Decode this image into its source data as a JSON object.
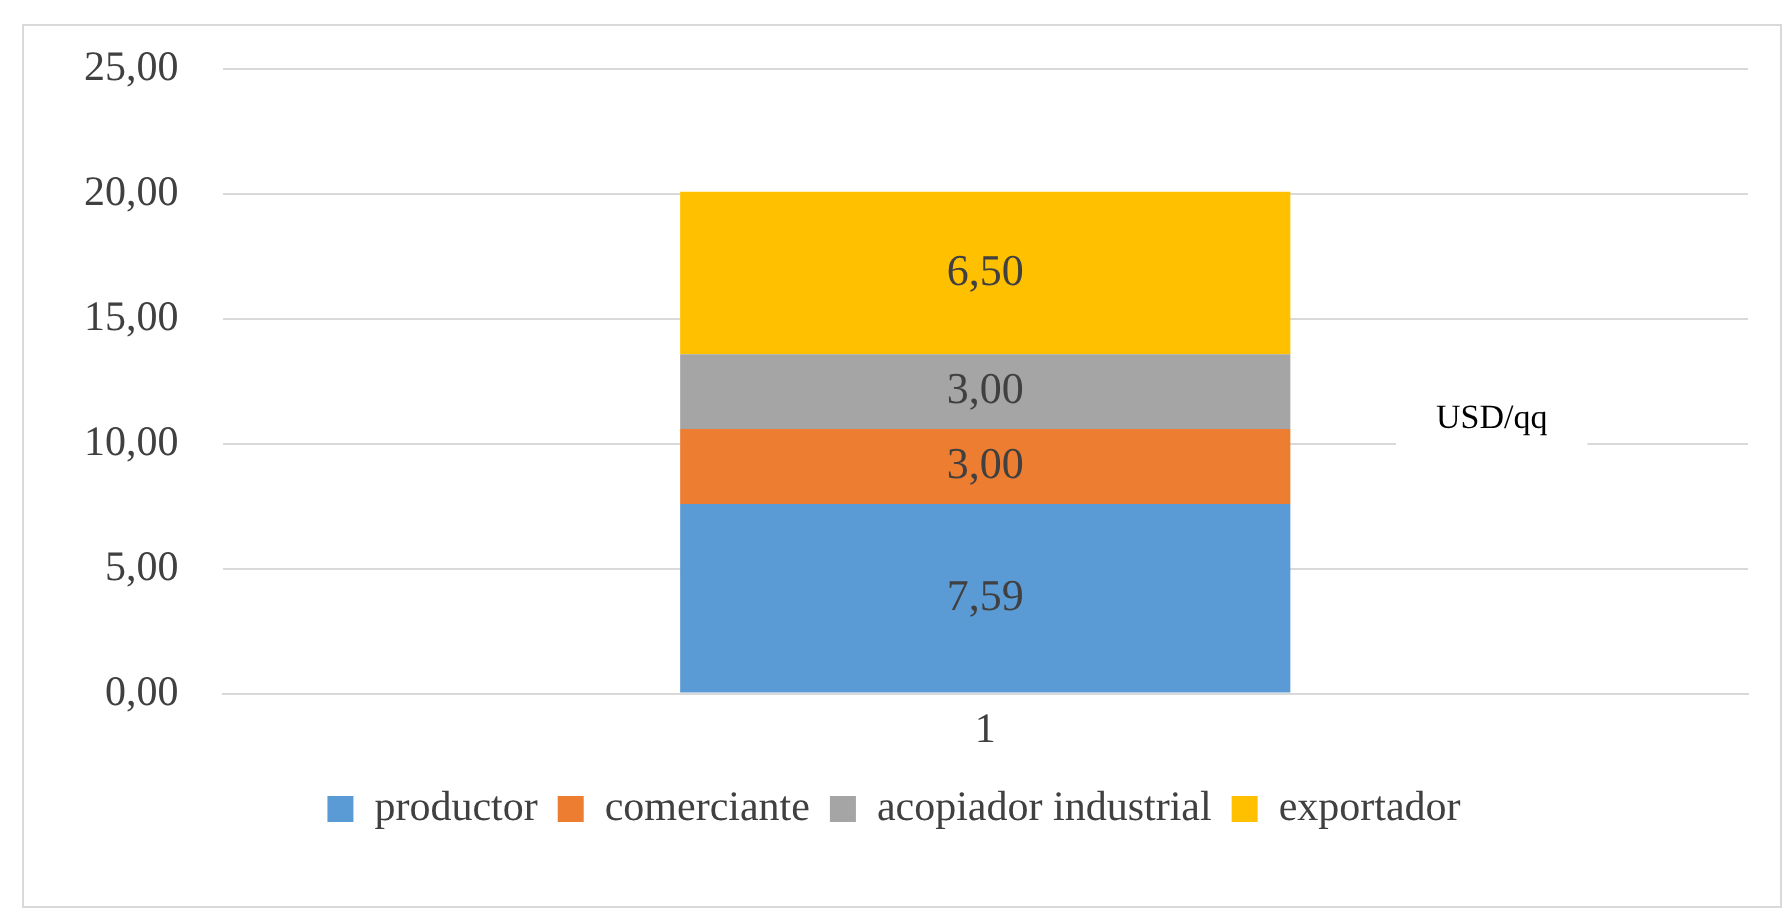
{
  "chart_data": {
    "type": "bar",
    "stacked": true,
    "categories": [
      "1"
    ],
    "series": [
      {
        "name": "productor",
        "color": "#5b9bd5",
        "values": [
          7.59
        ],
        "value_labels": [
          "7,59"
        ]
      },
      {
        "name": "comerciante",
        "color": "#ed7d31",
        "values": [
          3.0
        ],
        "value_labels": [
          "3,00"
        ]
      },
      {
        "name": "acopiador industrial",
        "color": "#a5a5a5",
        "values": [
          3.0
        ],
        "value_labels": [
          "3,00"
        ]
      },
      {
        "name": "exportador",
        "color": "#ffc000",
        "values": [
          6.5
        ],
        "value_labels": [
          "6,50"
        ]
      }
    ],
    "ylim": [
      0,
      25
    ],
    "yticks": [
      {
        "value": 0,
        "label": "0,00"
      },
      {
        "value": 5,
        "label": "5,00"
      },
      {
        "value": 10,
        "label": "10,00"
      },
      {
        "value": 15,
        "label": "15,00"
      },
      {
        "value": 20,
        "label": "20,00"
      },
      {
        "value": 25,
        "label": "25,00"
      }
    ],
    "grid": "y",
    "legend": "bottom",
    "annotations": [
      "USD/qq"
    ]
  }
}
